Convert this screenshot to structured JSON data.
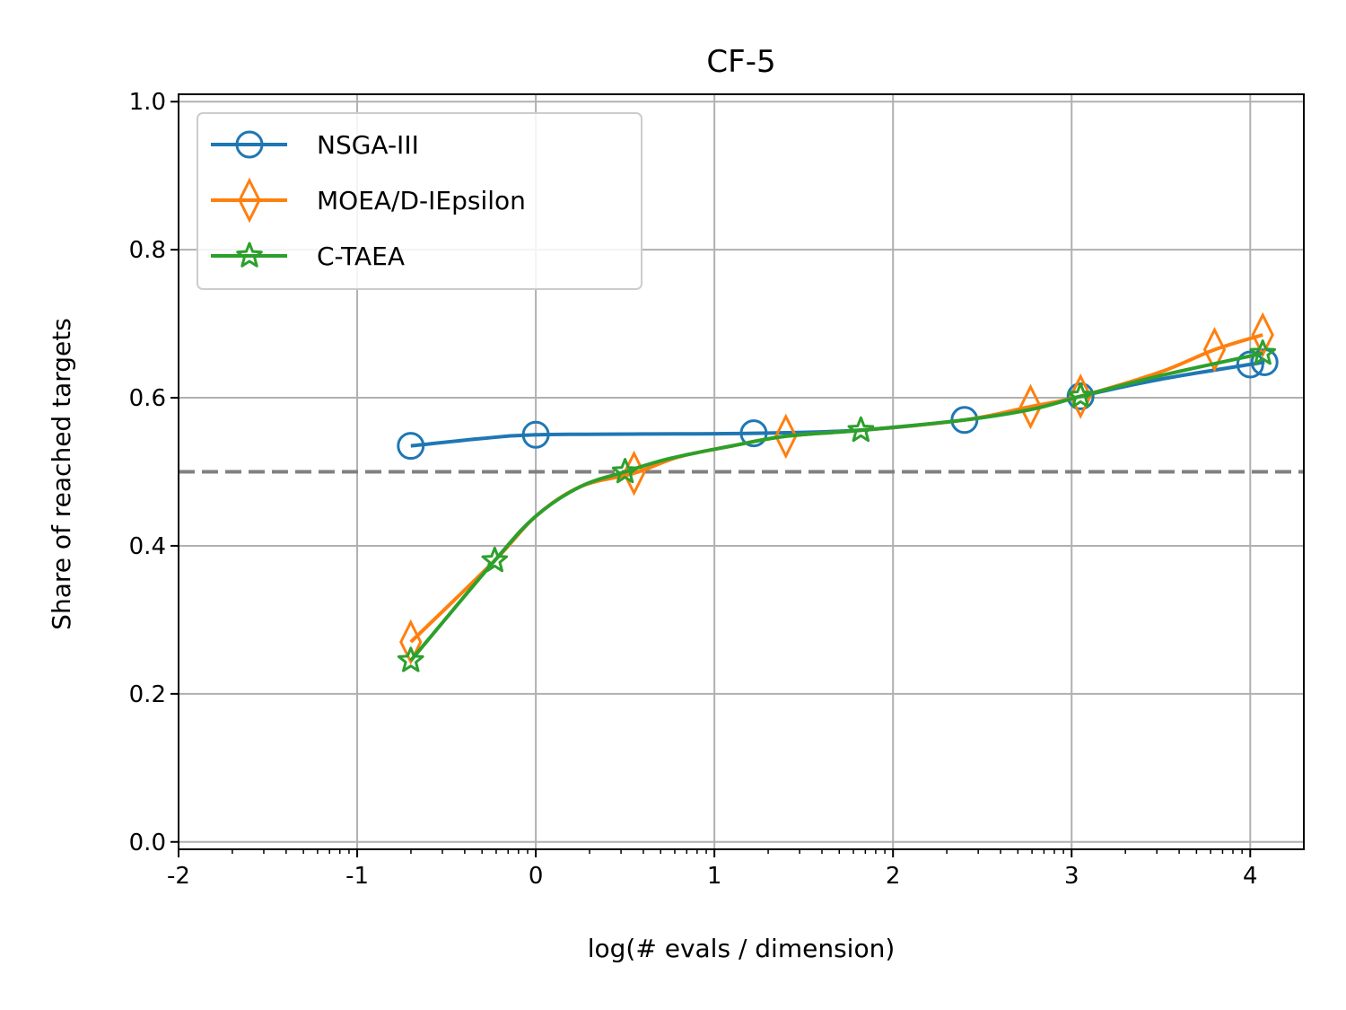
{
  "chart_data": {
    "type": "line",
    "title": "CF-5",
    "xlabel": "log(# evals / dimension)",
    "ylabel": "Share of reached targets",
    "xlim": [
      -2,
      4.3
    ],
    "ylim": [
      -0.01,
      1.01
    ],
    "x_scale": "log10 of evals/dimension",
    "x_ticks": [
      -2,
      -1,
      0,
      1,
      2,
      3,
      4
    ],
    "x_tick_labels": [
      "-2",
      "-1",
      "0",
      "1",
      "2",
      "3",
      "4"
    ],
    "y_ticks": [
      0.0,
      0.2,
      0.4,
      0.6,
      0.8,
      1.0
    ],
    "y_tick_labels": [
      "0.0",
      "0.2",
      "0.4",
      "0.6",
      "0.8",
      "1.0"
    ],
    "grid": true,
    "legend_position": "top-left",
    "reference_line": {
      "y": 0.5,
      "style": "dashed",
      "color": "#808080"
    },
    "series": [
      {
        "name": "NSGA-III",
        "color": "#1f77b4",
        "marker": "circle",
        "x": [
          -0.7,
          0.0,
          1.22,
          2.4,
          3.05,
          4.0,
          4.08
        ],
        "y": [
          0.535,
          0.55,
          0.552,
          0.57,
          0.602,
          0.645,
          0.648
        ],
        "curve_x": [
          -0.7,
          -0.3,
          0.0,
          0.6,
          1.22,
          1.8,
          2.4,
          2.75,
          3.05,
          3.5,
          4.0,
          4.08
        ],
        "curve_y": [
          0.535,
          0.545,
          0.55,
          0.551,
          0.552,
          0.556,
          0.57,
          0.584,
          0.602,
          0.625,
          0.645,
          0.648
        ]
      },
      {
        "name": "MOEA/D-IEpsilon",
        "color": "#ff7f0e",
        "marker": "diamond",
        "x": [
          -0.7,
          0.55,
          1.4,
          2.77,
          3.05,
          3.8,
          4.07
        ],
        "y": [
          0.27,
          0.498,
          0.548,
          0.588,
          0.602,
          0.665,
          0.685
        ],
        "curve_x": [
          -0.7,
          -0.23,
          0.0,
          0.25,
          0.55,
          0.8,
          1.1,
          1.4,
          1.82,
          2.4,
          2.77,
          3.05,
          3.5,
          3.8,
          4.07
        ],
        "curve_y": [
          0.27,
          0.38,
          0.44,
          0.48,
          0.498,
          0.52,
          0.535,
          0.548,
          0.556,
          0.57,
          0.588,
          0.602,
          0.635,
          0.665,
          0.685
        ]
      },
      {
        "name": "C-TAEA",
        "color": "#2ca02c",
        "marker": "star",
        "x": [
          -0.7,
          -0.23,
          0.5,
          1.82,
          3.05,
          4.07
        ],
        "y": [
          0.245,
          0.38,
          0.5,
          0.556,
          0.602,
          0.66
        ],
        "curve_x": [
          -0.7,
          -0.23,
          0.0,
          0.25,
          0.5,
          0.75,
          1.1,
          1.4,
          1.82,
          2.4,
          2.77,
          3.05,
          3.5,
          4.07
        ],
        "curve_y": [
          0.245,
          0.38,
          0.44,
          0.48,
          0.5,
          0.518,
          0.535,
          0.548,
          0.556,
          0.57,
          0.584,
          0.602,
          0.63,
          0.66
        ]
      }
    ]
  }
}
